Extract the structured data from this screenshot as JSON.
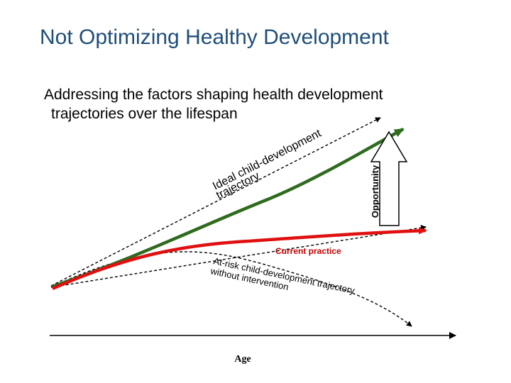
{
  "title": "Not Optimizing Healthy Development",
  "subtitle": {
    "line1": "Addressing the factors shaping health development",
    "line2": "trajectories over the lifespan"
  },
  "labels": {
    "ideal_line1": "Ideal child-development",
    "ideal_line2": "trajectory",
    "current_practice": "Current practice",
    "at_risk_line1": "At-risk child-development trajectory",
    "at_risk_line2": "without intervention",
    "opportunity": "Opportunity",
    "age_axis": "Age"
  },
  "colors": {
    "title": "#1f4e79",
    "ideal_curve": "#2e6b1e",
    "current_curve": "#e01010",
    "dashed_lines": "#000000"
  }
}
